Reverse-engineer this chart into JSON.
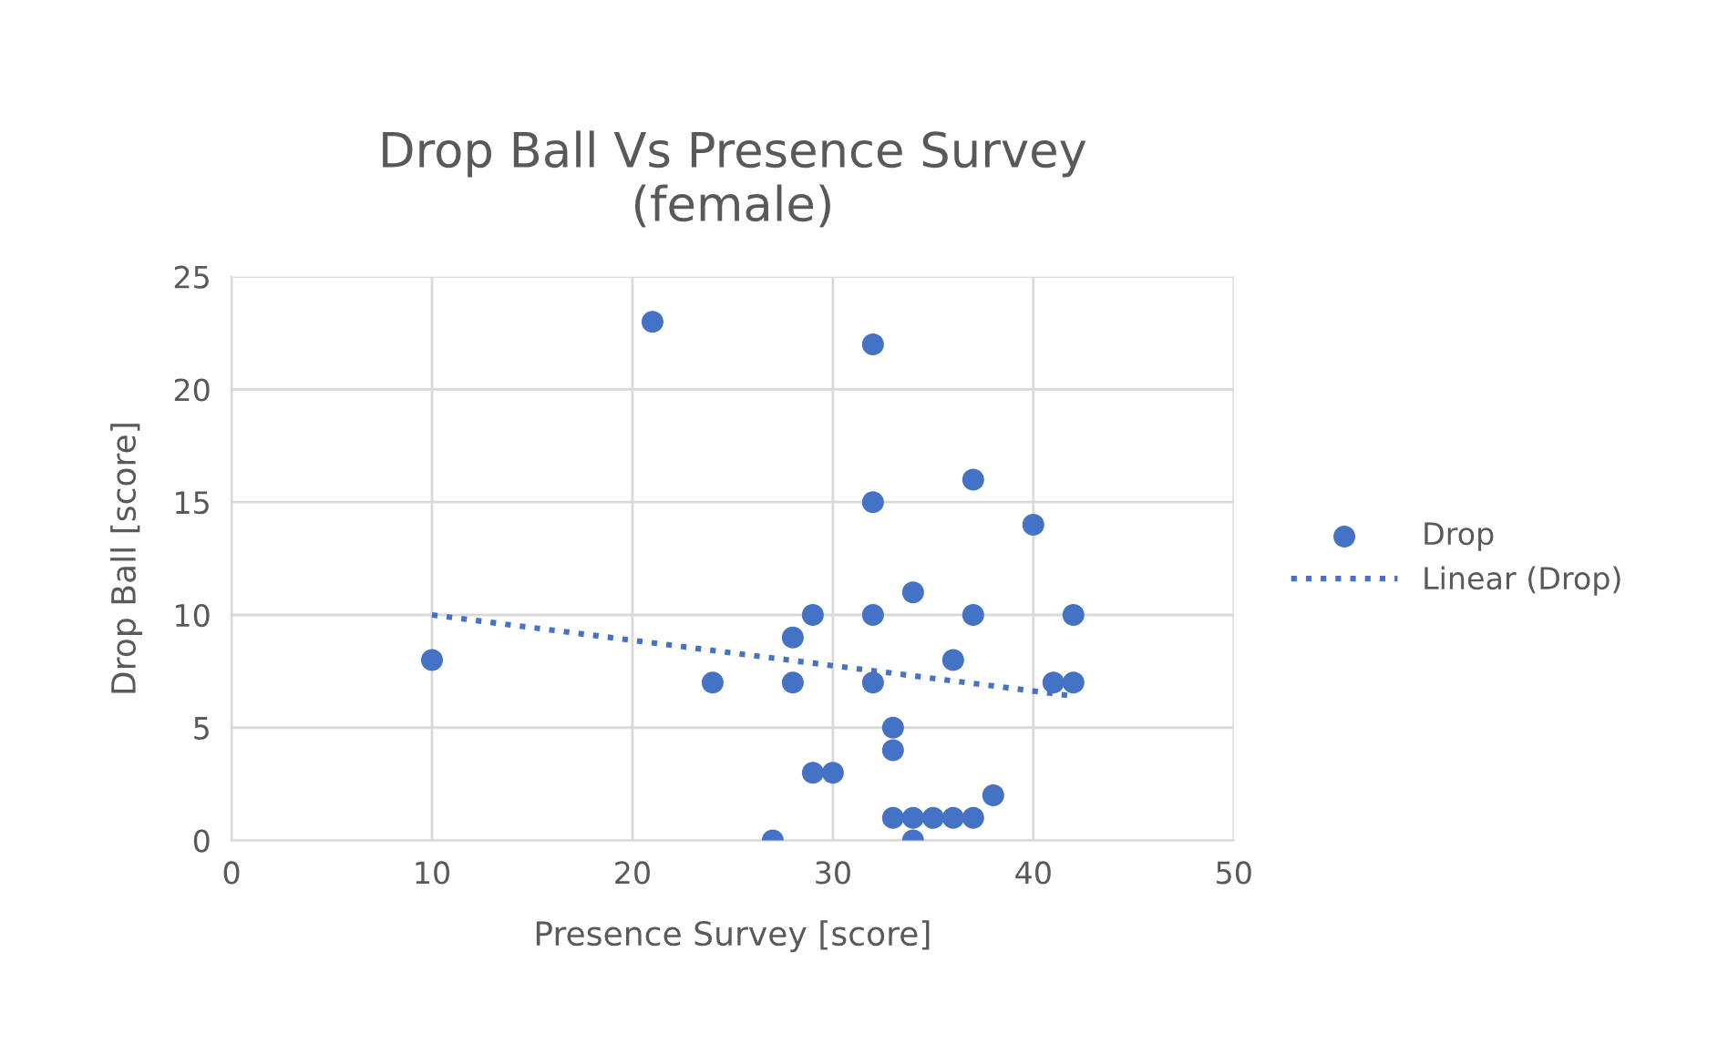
{
  "chart_data": {
    "type": "scatter",
    "title": "Drop Ball Vs Presence Survey\n(female)",
    "xlabel": "Presence Survey [score]",
    "ylabel": "Drop Ball [score]",
    "xlim": [
      0,
      50
    ],
    "xticks": [
      0,
      10,
      20,
      30,
      40,
      50
    ],
    "ylim": [
      0,
      25
    ],
    "yticks": [
      0,
      5,
      10,
      15,
      20,
      25
    ],
    "grid": true,
    "legend": "right",
    "marker": "circle",
    "series": [
      {
        "name": "Drop",
        "color": "#4472c4",
        "x": [
          10,
          21,
          24,
          27,
          28,
          28,
          29,
          29,
          30,
          32,
          32,
          32,
          32,
          33,
          33,
          33,
          34,
          34,
          34,
          35,
          36,
          36,
          37,
          37,
          37,
          38,
          40,
          41,
          42,
          42
        ],
        "values": [
          8,
          23,
          7,
          0,
          9,
          7,
          10,
          3,
          3,
          22,
          15,
          10,
          7,
          5,
          4,
          1,
          11,
          1,
          0,
          1,
          1,
          8,
          16,
          10,
          1,
          2,
          14,
          7,
          7,
          10
        ]
      },
      {
        "name": "Linear (Drop)",
        "type": "line",
        "color": "#4472c4",
        "line_style": "dotted",
        "marker": "none",
        "x": [
          10,
          42
        ],
        "values": [
          10.0,
          6.4
        ]
      }
    ]
  }
}
